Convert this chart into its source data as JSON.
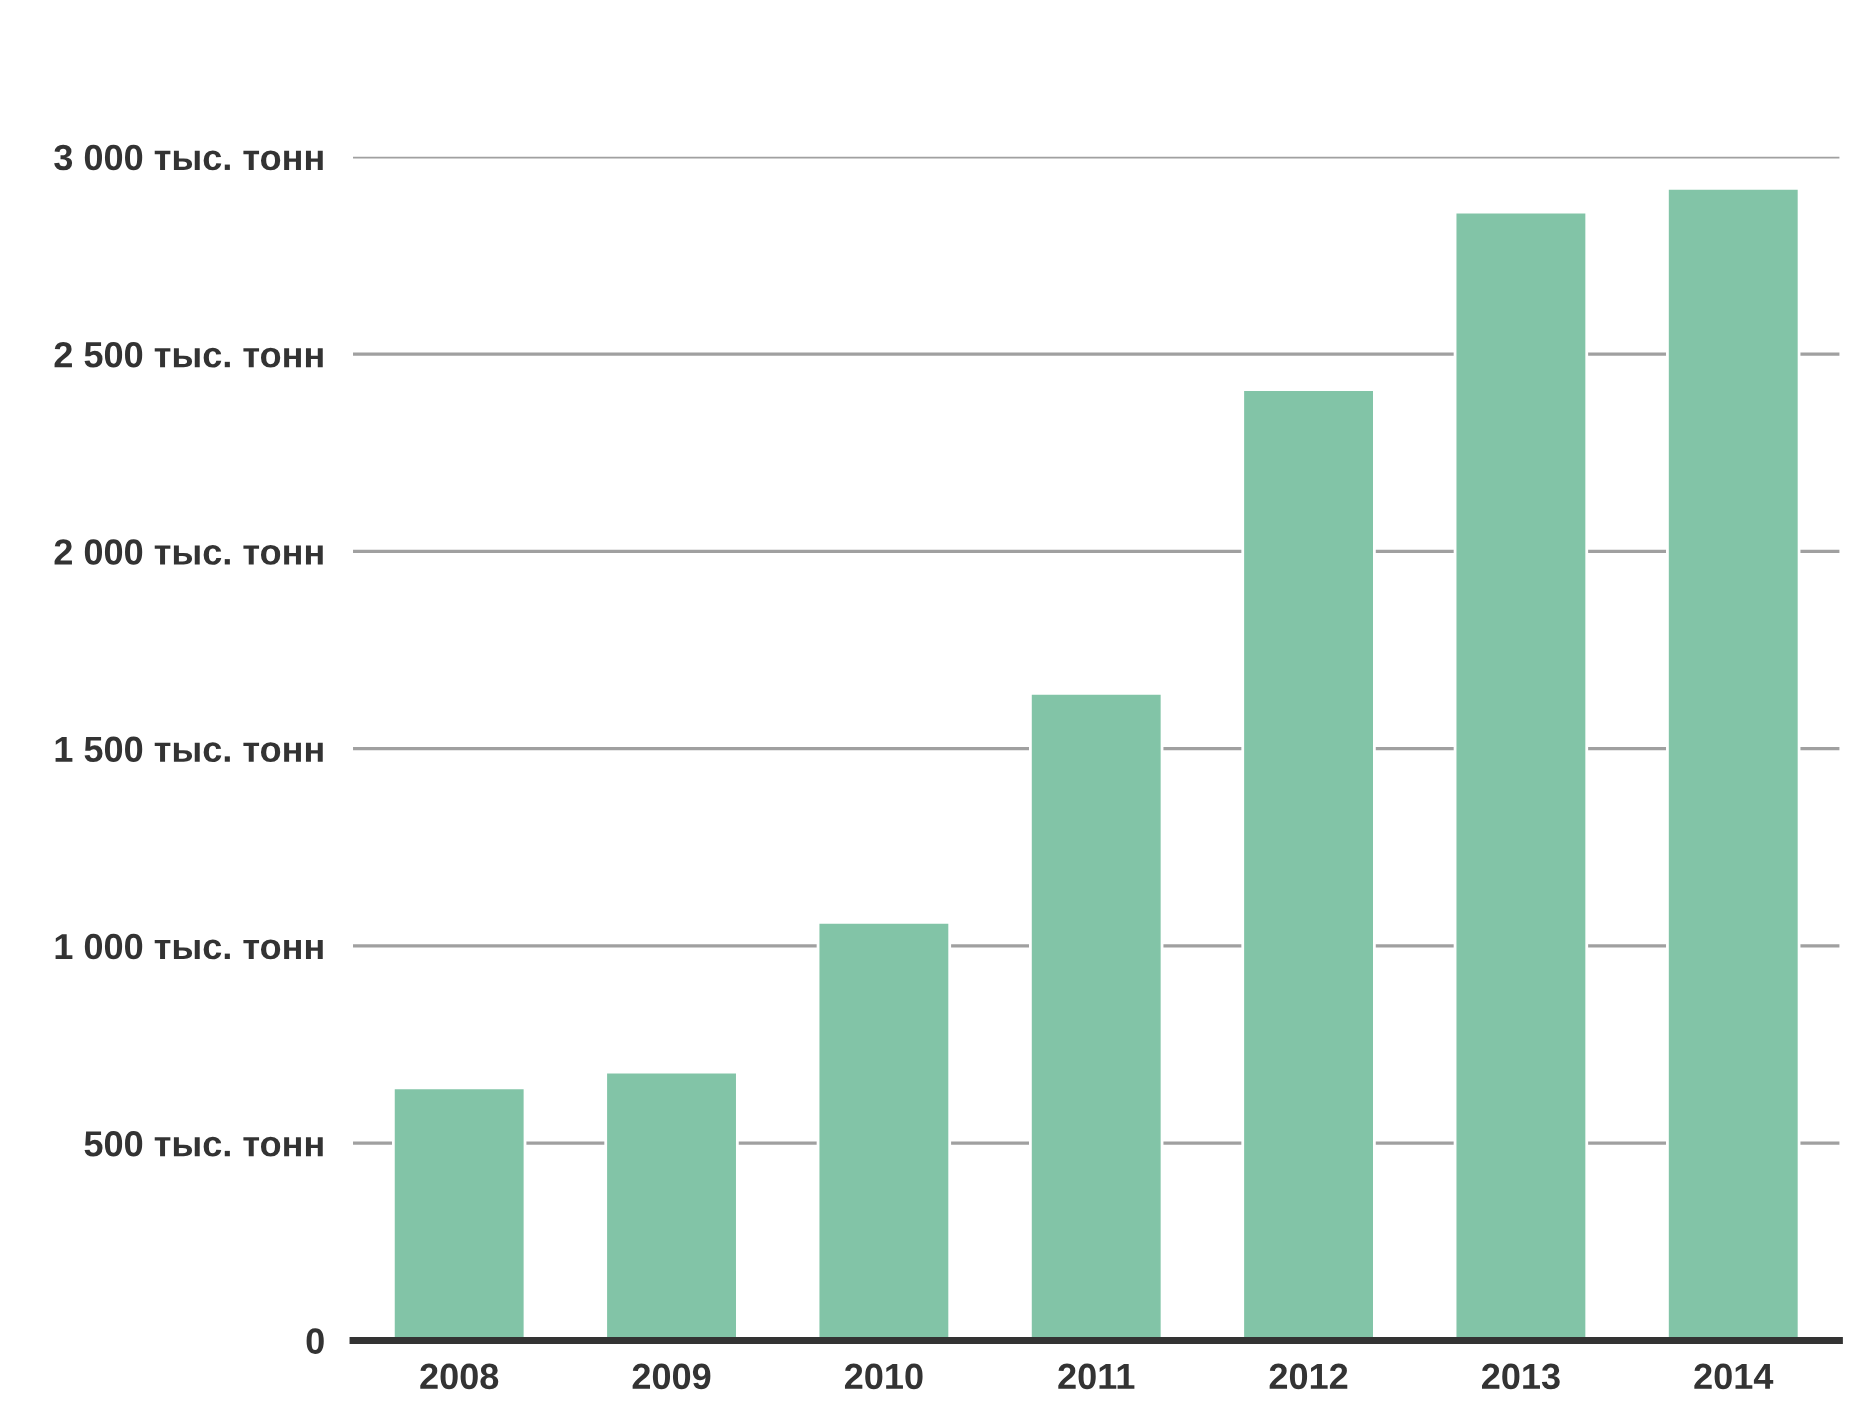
{
  "chart_data": {
    "type": "bar",
    "categories": [
      "2008",
      "2009",
      "2010",
      "2011",
      "2012",
      "2013",
      "2014"
    ],
    "values": [
      640,
      680,
      1060,
      1640,
      2410,
      2860,
      2920
    ],
    "color": "#82c4a7",
    "ylim": [
      0,
      3000
    ],
    "yticks": [
      {
        "value": 0,
        "label": "0"
      },
      {
        "value": 500,
        "label": "500 тыс. тонн"
      },
      {
        "value": 1000,
        "label": "1 000 тыс. тонн"
      },
      {
        "value": 1500,
        "label": "1 500 тыс. тонн"
      },
      {
        "value": 2000,
        "label": "2 000 тыс. тонн"
      },
      {
        "value": 2500,
        "label": "2 500 тыс. тонн"
      },
      {
        "value": 3000,
        "label": "3 000 тыс. тонн"
      }
    ],
    "grid": "y"
  }
}
